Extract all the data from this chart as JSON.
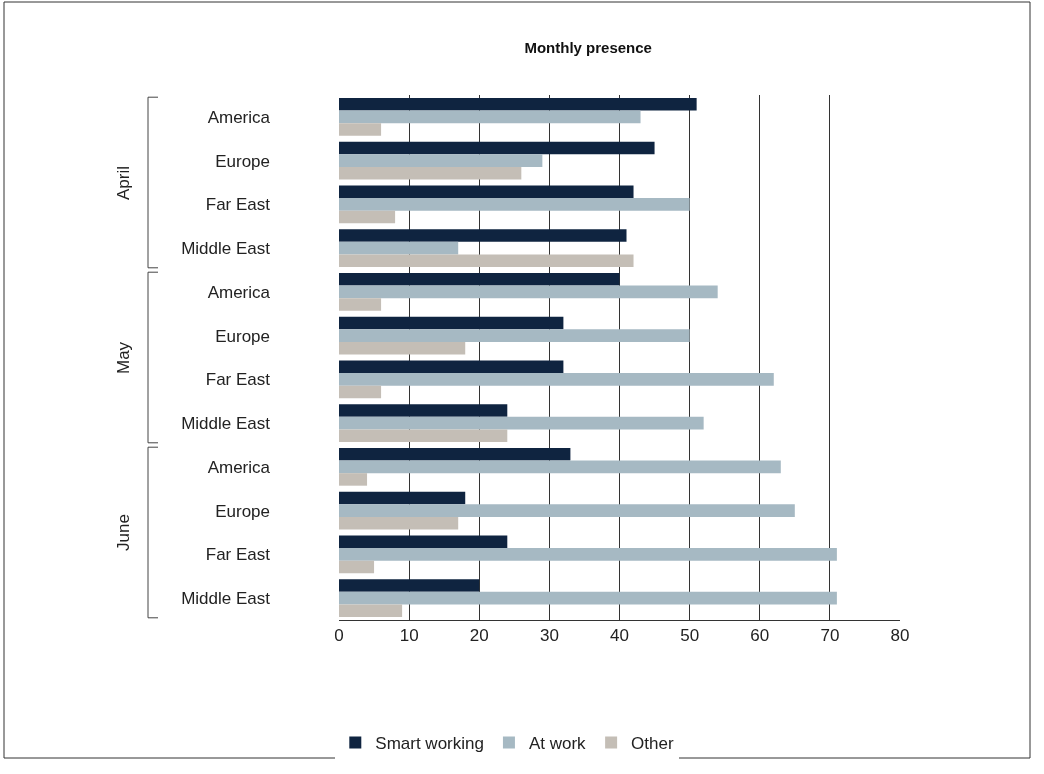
{
  "chart_data": {
    "type": "bar",
    "orientation": "horizontal",
    "title": "Monthly presence",
    "categories": [
      "America",
      "Europe",
      "Far East",
      "Middle East",
      "America",
      "Europe",
      "Far East",
      "Middle East",
      "America",
      "Europe",
      "Far East",
      "Middle East"
    ],
    "annotations": [
      "April",
      "May",
      "June"
    ],
    "series": [
      {
        "name": "Smart working",
        "color": "#0f2440",
        "values": [
          51,
          45,
          42,
          41,
          40,
          32,
          32,
          24,
          33,
          18,
          24,
          20
        ]
      },
      {
        "name": "At work",
        "color": "#a6b9c3",
        "values": [
          43,
          29,
          50,
          17,
          54,
          50,
          62,
          52,
          63,
          65,
          71,
          71
        ]
      },
      {
        "name": "Other",
        "color": "#c4beb6",
        "values": [
          6,
          26,
          8,
          42,
          6,
          18,
          6,
          24,
          4,
          17,
          5,
          9
        ]
      }
    ],
    "xlim": [
      0,
      80
    ],
    "xticks": [
      0,
      10,
      20,
      30,
      40,
      50,
      60,
      70,
      80
    ],
    "grid": "x",
    "legend": "bottom"
  }
}
